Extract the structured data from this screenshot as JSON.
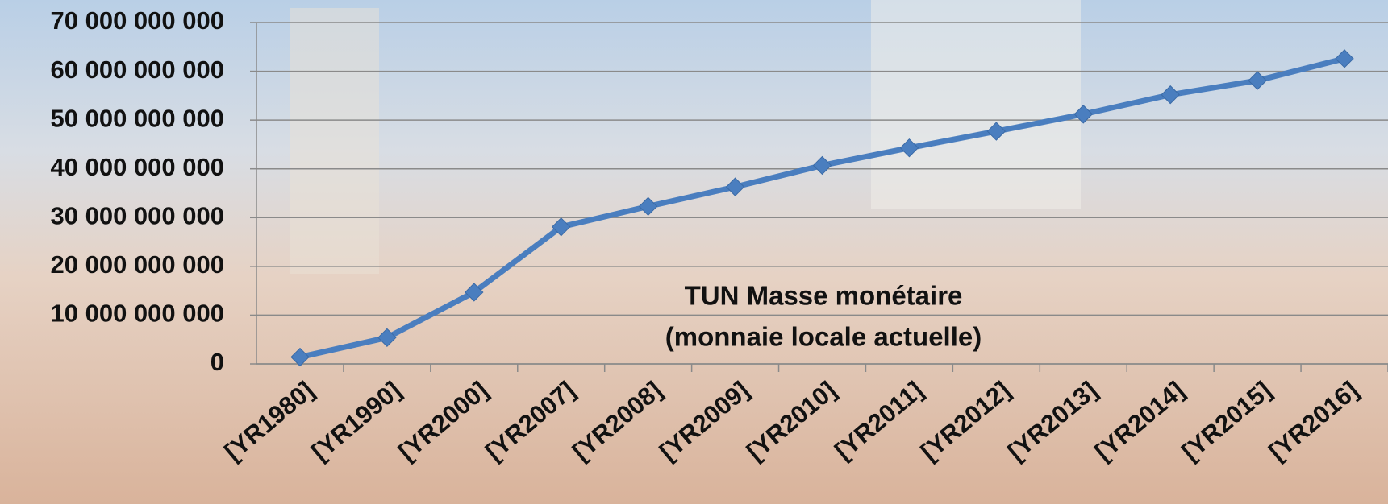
{
  "chart_data": {
    "type": "line",
    "title": "TUN Masse monétaire",
    "subtitle": "(monnaie locale actuelle)",
    "categories": [
      "[YR1980]",
      "[YR1990]",
      "[YR2000]",
      "[YR2007]",
      "[YR2008]",
      "[YR2009]",
      "[YR2010]",
      "[YR2011]",
      "[YR2012]",
      "[YR2013]",
      "[YR2014]",
      "[YR2015]",
      "[YR2016]"
    ],
    "series": [
      {
        "name": "TUN Masse monétaire (monnaie locale actuelle)",
        "color": "#4a7ebf",
        "values": [
          1400000000,
          5400000000,
          14700000000,
          28100000000,
          32300000000,
          36300000000,
          40700000000,
          44300000000,
          47700000000,
          51200000000,
          55200000000,
          58100000000,
          62600000000
        ]
      }
    ],
    "ylim": [
      0,
      70000000000
    ],
    "yticks": [
      0,
      {
        "value": 10000000000,
        "label": "10 000 000 000"
      },
      {
        "value": 20000000000,
        "label": "20 000 000 000"
      },
      {
        "value": 30000000000,
        "label": "30 000 000 000"
      },
      {
        "value": 40000000000,
        "label": "40 000 000 000"
      },
      {
        "value": 50000000000,
        "label": "50 000 000 000"
      },
      {
        "value": 60000000000,
        "label": "60 000 000 000"
      },
      {
        "value": 70000000000,
        "label": "70 000 000 000"
      }
    ],
    "grid": true
  }
}
